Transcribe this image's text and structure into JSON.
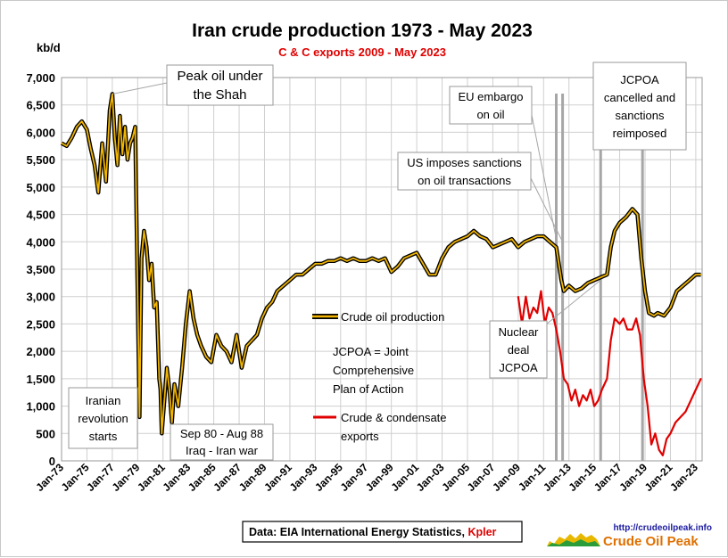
{
  "chart_data": {
    "type": "line",
    "title": "Iran crude production 1973 - May 2023",
    "subtitle": "C & C exports 2009 - May 2023",
    "ylabel": "kb/d",
    "xlabel": "",
    "ylim": [
      0,
      7000
    ],
    "yticks": [
      "0",
      "500",
      "1,000",
      "1,500",
      "2,000",
      "2,500",
      "3,000",
      "3,500",
      "4,000",
      "4,500",
      "5,000",
      "5,500",
      "6,000",
      "6,500",
      "7,000"
    ],
    "xticks": [
      "Jan-73",
      "Jan-75",
      "Jan-77",
      "Jan-79",
      "Jan-81",
      "Jan-83",
      "Jan-85",
      "Jan-87",
      "Jan-89",
      "Jan-91",
      "Jan-93",
      "Jan-95",
      "Jan-97",
      "Jan-99",
      "Jan-01",
      "Jan-03",
      "Jan-05",
      "Jan-07",
      "Jan-09",
      "Jan-11",
      "Jan-13",
      "Jan-15",
      "Jan-17",
      "Jan-19",
      "Jan-21",
      "Jan-23"
    ],
    "grid": true,
    "series": [
      {
        "name": "Crude oil production",
        "color": "#f0b400",
        "points": [
          [
            1973.0,
            5800
          ],
          [
            1973.4,
            5750
          ],
          [
            1973.8,
            5900
          ],
          [
            1974.2,
            6100
          ],
          [
            1974.6,
            6200
          ],
          [
            1975.0,
            6050
          ],
          [
            1975.3,
            5700
          ],
          [
            1975.6,
            5400
          ],
          [
            1975.9,
            4900
          ],
          [
            1976.2,
            5800
          ],
          [
            1976.5,
            5100
          ],
          [
            1976.8,
            6400
          ],
          [
            1977.0,
            6700
          ],
          [
            1977.2,
            5900
          ],
          [
            1977.4,
            5400
          ],
          [
            1977.6,
            6300
          ],
          [
            1977.8,
            5600
          ],
          [
            1978.0,
            6100
          ],
          [
            1978.2,
            5500
          ],
          [
            1978.4,
            5800
          ],
          [
            1978.6,
            5900
          ],
          [
            1978.8,
            6100
          ],
          [
            1979.0,
            3000
          ],
          [
            1979.15,
            800
          ],
          [
            1979.3,
            3700
          ],
          [
            1979.5,
            4200
          ],
          [
            1979.7,
            3900
          ],
          [
            1979.9,
            3300
          ],
          [
            1980.1,
            3600
          ],
          [
            1980.3,
            2800
          ],
          [
            1980.5,
            2900
          ],
          [
            1980.7,
            1500
          ],
          [
            1980.8,
            1300
          ],
          [
            1980.9,
            500
          ],
          [
            1981.1,
            1100
          ],
          [
            1981.3,
            1700
          ],
          [
            1981.5,
            1300
          ],
          [
            1981.7,
            700
          ],
          [
            1981.9,
            1400
          ],
          [
            1982.2,
            1000
          ],
          [
            1982.5,
            1700
          ],
          [
            1982.8,
            2500
          ],
          [
            1983.1,
            3100
          ],
          [
            1983.4,
            2600
          ],
          [
            1983.7,
            2300
          ],
          [
            1984.0,
            2100
          ],
          [
            1984.4,
            1900
          ],
          [
            1984.8,
            1800
          ],
          [
            1985.2,
            2300
          ],
          [
            1985.6,
            2100
          ],
          [
            1986.0,
            2000
          ],
          [
            1986.4,
            1800
          ],
          [
            1986.8,
            2300
          ],
          [
            1987.2,
            1700
          ],
          [
            1987.6,
            2100
          ],
          [
            1988.0,
            2200
          ],
          [
            1988.4,
            2300
          ],
          [
            1988.8,
            2600
          ],
          [
            1989.2,
            2800
          ],
          [
            1989.6,
            2900
          ],
          [
            1990.0,
            3100
          ],
          [
            1990.5,
            3200
          ],
          [
            1991.0,
            3300
          ],
          [
            1991.5,
            3400
          ],
          [
            1992.0,
            3400
          ],
          [
            1992.5,
            3500
          ],
          [
            1993.0,
            3600
          ],
          [
            1993.5,
            3600
          ],
          [
            1994.0,
            3650
          ],
          [
            1994.5,
            3650
          ],
          [
            1995.0,
            3700
          ],
          [
            1995.5,
            3650
          ],
          [
            1996.0,
            3700
          ],
          [
            1996.5,
            3650
          ],
          [
            1997.0,
            3650
          ],
          [
            1997.5,
            3700
          ],
          [
            1998.0,
            3650
          ],
          [
            1998.5,
            3700
          ],
          [
            1999.0,
            3450
          ],
          [
            1999.5,
            3550
          ],
          [
            2000.0,
            3700
          ],
          [
            2000.5,
            3750
          ],
          [
            2001.0,
            3800
          ],
          [
            2001.5,
            3600
          ],
          [
            2002.0,
            3400
          ],
          [
            2002.5,
            3400
          ],
          [
            2003.0,
            3700
          ],
          [
            2003.5,
            3900
          ],
          [
            2004.0,
            4000
          ],
          [
            2004.5,
            4050
          ],
          [
            2005.0,
            4100
          ],
          [
            2005.5,
            4200
          ],
          [
            2006.0,
            4100
          ],
          [
            2006.5,
            4050
          ],
          [
            2007.0,
            3900
          ],
          [
            2007.5,
            3950
          ],
          [
            2008.0,
            4000
          ],
          [
            2008.5,
            4050
          ],
          [
            2009.0,
            3900
          ],
          [
            2009.5,
            4000
          ],
          [
            2010.0,
            4050
          ],
          [
            2010.5,
            4100
          ],
          [
            2011.0,
            4100
          ],
          [
            2011.5,
            4000
          ],
          [
            2012.0,
            3900
          ],
          [
            2012.4,
            3300
          ],
          [
            2012.6,
            3100
          ],
          [
            2013.0,
            3200
          ],
          [
            2013.5,
            3100
          ],
          [
            2014.0,
            3150
          ],
          [
            2014.5,
            3250
          ],
          [
            2015.0,
            3300
          ],
          [
            2015.5,
            3350
          ],
          [
            2016.0,
            3400
          ],
          [
            2016.3,
            3900
          ],
          [
            2016.6,
            4200
          ],
          [
            2017.0,
            4350
          ],
          [
            2017.5,
            4450
          ],
          [
            2018.0,
            4600
          ],
          [
            2018.4,
            4500
          ],
          [
            2018.7,
            3700
          ],
          [
            2019.0,
            3100
          ],
          [
            2019.3,
            2700
          ],
          [
            2019.7,
            2650
          ],
          [
            2020.0,
            2700
          ],
          [
            2020.5,
            2650
          ],
          [
            2021.0,
            2800
          ],
          [
            2021.5,
            3100
          ],
          [
            2022.0,
            3200
          ],
          [
            2022.5,
            3300
          ],
          [
            2023.0,
            3400
          ],
          [
            2023.4,
            3400
          ]
        ]
      },
      {
        "name": "Crude & condensate exports",
        "color": "#e00000",
        "points": [
          [
            2009.0,
            3000
          ],
          [
            2009.3,
            2500
          ],
          [
            2009.6,
            3000
          ],
          [
            2009.9,
            2600
          ],
          [
            2010.2,
            2800
          ],
          [
            2010.5,
            2700
          ],
          [
            2010.8,
            3100
          ],
          [
            2011.1,
            2500
          ],
          [
            2011.4,
            2800
          ],
          [
            2011.7,
            2700
          ],
          [
            2012.0,
            2400
          ],
          [
            2012.3,
            2000
          ],
          [
            2012.6,
            1500
          ],
          [
            2012.9,
            1400
          ],
          [
            2013.2,
            1100
          ],
          [
            2013.5,
            1300
          ],
          [
            2013.8,
            1000
          ],
          [
            2014.1,
            1200
          ],
          [
            2014.4,
            1100
          ],
          [
            2014.7,
            1300
          ],
          [
            2015.0,
            1000
          ],
          [
            2015.3,
            1100
          ],
          [
            2015.6,
            1300
          ],
          [
            2016.0,
            1500
          ],
          [
            2016.3,
            2200
          ],
          [
            2016.6,
            2600
          ],
          [
            2017.0,
            2500
          ],
          [
            2017.3,
            2600
          ],
          [
            2017.6,
            2400
          ],
          [
            2018.0,
            2400
          ],
          [
            2018.3,
            2600
          ],
          [
            2018.6,
            2300
          ],
          [
            2018.9,
            1500
          ],
          [
            2019.2,
            1000
          ],
          [
            2019.5,
            300
          ],
          [
            2019.8,
            500
          ],
          [
            2020.1,
            200
          ],
          [
            2020.4,
            100
          ],
          [
            2020.7,
            400
          ],
          [
            2021.0,
            500
          ],
          [
            2021.4,
            700
          ],
          [
            2021.8,
            800
          ],
          [
            2022.2,
            900
          ],
          [
            2022.6,
            1100
          ],
          [
            2023.0,
            1300
          ],
          [
            2023.4,
            1500
          ]
        ]
      }
    ],
    "legend": [
      {
        "label": "Crude oil production",
        "color": "#f0b400"
      },
      {
        "label": "Crude & condensate exports",
        "color": "#e00000"
      }
    ],
    "annotations": [
      {
        "lines": [
          "Peak oil under",
          "the Shah"
        ]
      },
      {
        "lines": [
          "Iranian",
          "revolution",
          "starts"
        ]
      },
      {
        "lines": [
          "Sep 80 - Aug 88",
          "Iraq - Iran war"
        ]
      },
      {
        "lines": [
          "EU embargo",
          "on oil"
        ]
      },
      {
        "lines": [
          "US imposes sanctions",
          "on oil transactions"
        ]
      },
      {
        "lines": [
          "JCPOA",
          "cancelled and",
          "sanctions",
          "reimposed"
        ]
      },
      {
        "lines": [
          "Nuclear",
          "deal",
          "JCPOA"
        ]
      },
      {
        "lines": [
          "JCPOA = Joint",
          "Comprehensive",
          "Plan of Action"
        ]
      }
    ],
    "event_markers": [
      2012.0,
      2012.5,
      2015.5,
      2018.8
    ],
    "source": {
      "prefix": "Data: EIA International Energy Statistics, ",
      "highlight": "Kpler"
    },
    "logo": {
      "url": "http://crudeoilpeak.info",
      "name": "Crude Oil Peak"
    }
  }
}
